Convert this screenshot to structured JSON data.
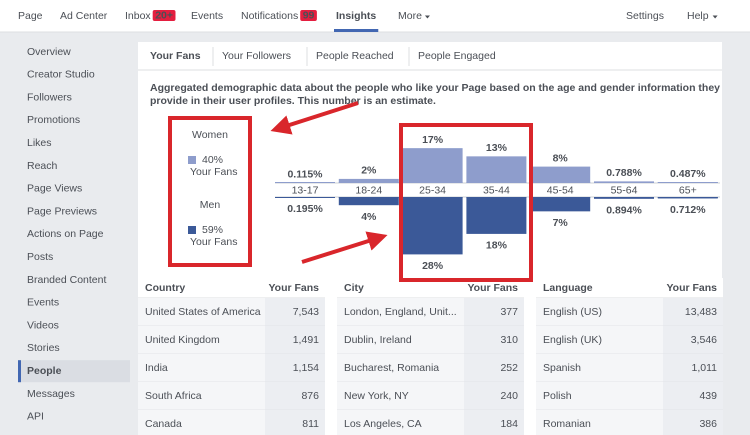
{
  "nav": {
    "left": [
      {
        "label": "Page"
      },
      {
        "label": "Ad Center"
      },
      {
        "label": "Inbox",
        "badge": "20+"
      },
      {
        "label": "Events"
      },
      {
        "label": "Notifications",
        "badge": "99"
      },
      {
        "label": "Insights",
        "selected": true
      },
      {
        "label": "More"
      }
    ],
    "right": [
      "Settings",
      "Help"
    ]
  },
  "sidebar": {
    "items": [
      {
        "label": "Overview"
      },
      {
        "label": "Creator Studio"
      },
      {
        "label": "Followers"
      },
      {
        "label": "Promotions"
      },
      {
        "label": "Likes"
      },
      {
        "label": "Reach"
      },
      {
        "label": "Page Views"
      },
      {
        "label": "Page Previews"
      },
      {
        "label": "Actions on Page"
      },
      {
        "label": "Posts"
      },
      {
        "label": "Branded Content"
      },
      {
        "label": "Events"
      },
      {
        "label": "Videos"
      },
      {
        "label": "Stories"
      },
      {
        "label": "People",
        "selected": true
      },
      {
        "label": "Messages"
      },
      {
        "label": "API"
      }
    ]
  },
  "tabs": [
    {
      "label": "Your Fans",
      "selected": true
    },
    {
      "label": "Your Followers"
    },
    {
      "label": "People Reached"
    },
    {
      "label": "People Engaged"
    }
  ],
  "description": [
    "Aggregated demographic data about the people who like your Page based on the age and gender information they",
    "provide in their user profiles. This number is an estimate."
  ],
  "chart_data": {
    "type": "butterfly-bar",
    "categories": [
      "13-17",
      "18-24",
      "25-34",
      "35-44",
      "45-54",
      "55-64",
      "65+"
    ],
    "series": [
      {
        "name": "Women",
        "color": "#8e9dcc",
        "share": "40%",
        "caption": "Your Fans",
        "values": [
          0.115,
          2,
          17,
          13,
          8,
          0.788,
          0.487
        ],
        "value_labels": [
          "0.115%",
          "2%",
          "17%",
          "13%",
          "8%",
          "0.788%",
          "0.487%"
        ]
      },
      {
        "name": "Men",
        "color": "#3b5998",
        "share": "59%",
        "caption": "Your Fans",
        "values": [
          0.195,
          4,
          28,
          18,
          7,
          0.894,
          0.712
        ],
        "value_labels": [
          "0.195%",
          "4%",
          "28%",
          "18%",
          "7%",
          "0.894%",
          "0.712%"
        ]
      }
    ]
  },
  "tables": [
    {
      "headers": [
        "Country",
        "Your Fans"
      ],
      "rows": [
        [
          "United States of America",
          "7,543"
        ],
        [
          "United Kingdom",
          "1,491"
        ],
        [
          "India",
          "1,154"
        ],
        [
          "South Africa",
          "876"
        ],
        [
          "Canada",
          "811"
        ]
      ]
    },
    {
      "headers": [
        "City",
        "Your Fans"
      ],
      "rows": [
        [
          "London, England, Unit...",
          "377"
        ],
        [
          "Dublin, Ireland",
          "310"
        ],
        [
          "Bucharest, Romania",
          "252"
        ],
        [
          "New York, NY",
          "240"
        ],
        [
          "Los Angeles, CA",
          "184"
        ]
      ]
    },
    {
      "headers": [
        "Language",
        "Your Fans"
      ],
      "rows": [
        [
          "English (US)",
          "13,483"
        ],
        [
          "English (UK)",
          "3,546"
        ],
        [
          "Spanish",
          "1,011"
        ],
        [
          "Polish",
          "439"
        ],
        [
          "Romanian",
          "386"
        ]
      ]
    }
  ]
}
